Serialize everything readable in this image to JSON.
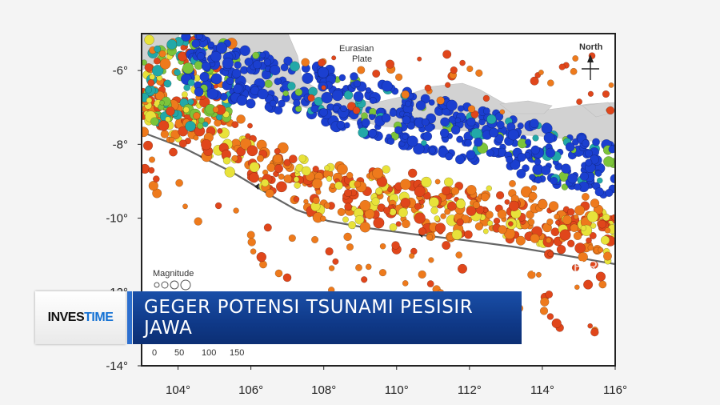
{
  "map": {
    "plate_label_line1": "Eurasian",
    "plate_label_line2": "Plate",
    "north_label": "North",
    "magnitude_label": "Magnitude",
    "scale_labels": [
      "0",
      "50",
      "100",
      "150"
    ],
    "x_ticks": [
      {
        "value": 104,
        "label": "104°"
      },
      {
        "value": 106,
        "label": "106°"
      },
      {
        "value": 108,
        "label": "108°"
      },
      {
        "value": 110,
        "label": "110°"
      },
      {
        "value": 112,
        "label": "112°"
      },
      {
        "value": 114,
        "label": "114°"
      },
      {
        "value": 116,
        "label": "116°"
      }
    ],
    "y_ticks": [
      {
        "value": -6,
        "label": "-6°"
      },
      {
        "value": -8,
        "label": "-8°"
      },
      {
        "value": -10,
        "label": "-10°"
      },
      {
        "value": -12,
        "label": "-12°"
      },
      {
        "value": -14,
        "label": "-14°"
      }
    ],
    "xlim": [
      103,
      116
    ],
    "ylim": [
      -14,
      -5
    ],
    "ghost_text": "PROBER",
    "colors": {
      "land": "#d2d2d2",
      "ocean": "#ffffff",
      "trench": "#666666",
      "deep": "#1b3fd0",
      "mid": "#22a8a8",
      "shallow_green": "#7cc43a",
      "shallow_yellow": "#e8e23a",
      "shallow_orange": "#ee7a1c",
      "shallow_red": "#e0461b"
    }
  },
  "broadcast": {
    "brand_part1": "INVES",
    "brand_part2": "TIME",
    "headline": "GEGER POTENSI TSUNAMI PESISIR JAWA"
  }
}
